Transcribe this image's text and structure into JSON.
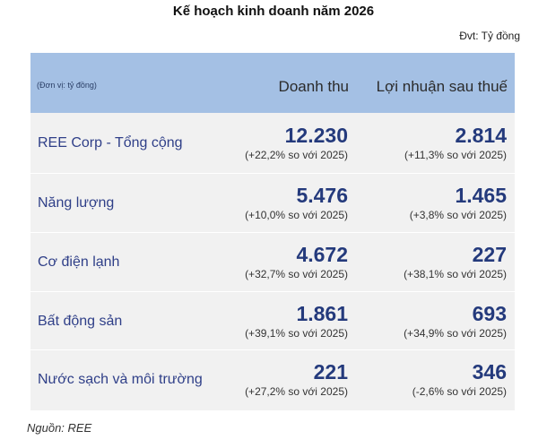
{
  "title": "Kế hoạch kinh doanh năm 2026",
  "unit_label": "Đvt: Tỷ đồng",
  "table": {
    "header": {
      "unit_note": "(Đơn vị: tỷ đồng)",
      "revenue_col": "Doanh thu",
      "profit_col": "Lợi nhuận sau thuế"
    },
    "rows": [
      {
        "label": "REE Corp - Tổng cộng",
        "revenue": "12.230",
        "revenue_change": "(+22,2% so với 2025)",
        "profit": "2.814",
        "profit_change": "(+11,3% so với 2025)"
      },
      {
        "label": "Năng lượng",
        "revenue": "5.476",
        "revenue_change": "(+10,0% so với 2025)",
        "profit": "1.465",
        "profit_change": "(+3,8% so với 2025)"
      },
      {
        "label": "Cơ điện lạnh",
        "revenue": "4.672",
        "revenue_change": "(+32,7% so với 2025)",
        "profit": "227",
        "profit_change": "(+38,1% so với 2025)"
      },
      {
        "label": "Bất động sản",
        "revenue": "1.861",
        "revenue_change": "(+39,1% so với 2025)",
        "profit": "693",
        "profit_change": "(+34,9% so với 2025)"
      },
      {
        "label": "Nước sạch và môi trường",
        "revenue": "221",
        "revenue_change": "(+27,2% so với 2025)",
        "profit": "346",
        "profit_change": "(-2,6% so với 2025)"
      }
    ]
  },
  "source": "Nguồn: REE"
}
